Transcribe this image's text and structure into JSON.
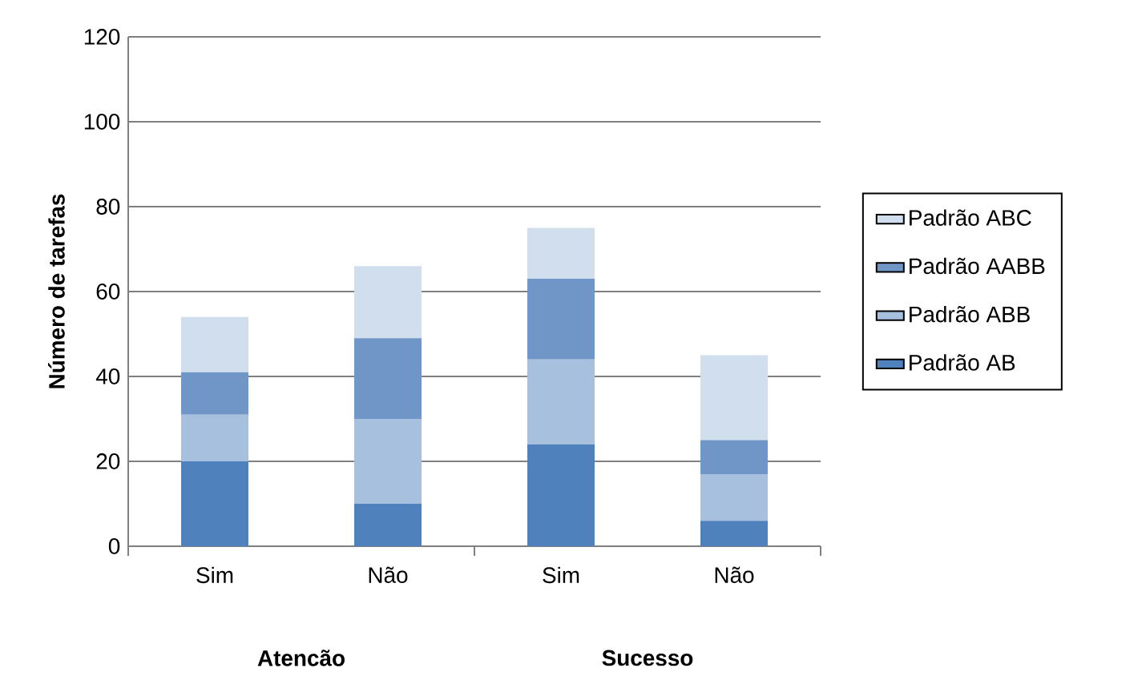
{
  "chart_data": {
    "type": "bar",
    "stacked": true,
    "ylabel": "Número de tarefas",
    "categories": [
      "Sim",
      "Não",
      "Sim",
      "Não"
    ],
    "series": [
      {
        "name": "Padrão AB",
        "color": "#4f81bd",
        "values": [
          20,
          10,
          24,
          6
        ]
      },
      {
        "name": "Padrão ABB",
        "color": "#a7c0de",
        "values": [
          11,
          20,
          20,
          11
        ]
      },
      {
        "name": "Padrão AABB",
        "color": "#7096c8",
        "values": [
          10,
          19,
          19,
          8
        ]
      },
      {
        "name": "Padrão ABC",
        "color": "#d0deee",
        "values": [
          13,
          17,
          12,
          20
        ]
      }
    ],
    "annotations": [
      "Atencão",
      "Sucesso"
    ],
    "ylim": [
      0,
      120
    ],
    "yticks": [
      0,
      20,
      40,
      60,
      80,
      100,
      120
    ],
    "grid": "y",
    "legend": "right"
  }
}
